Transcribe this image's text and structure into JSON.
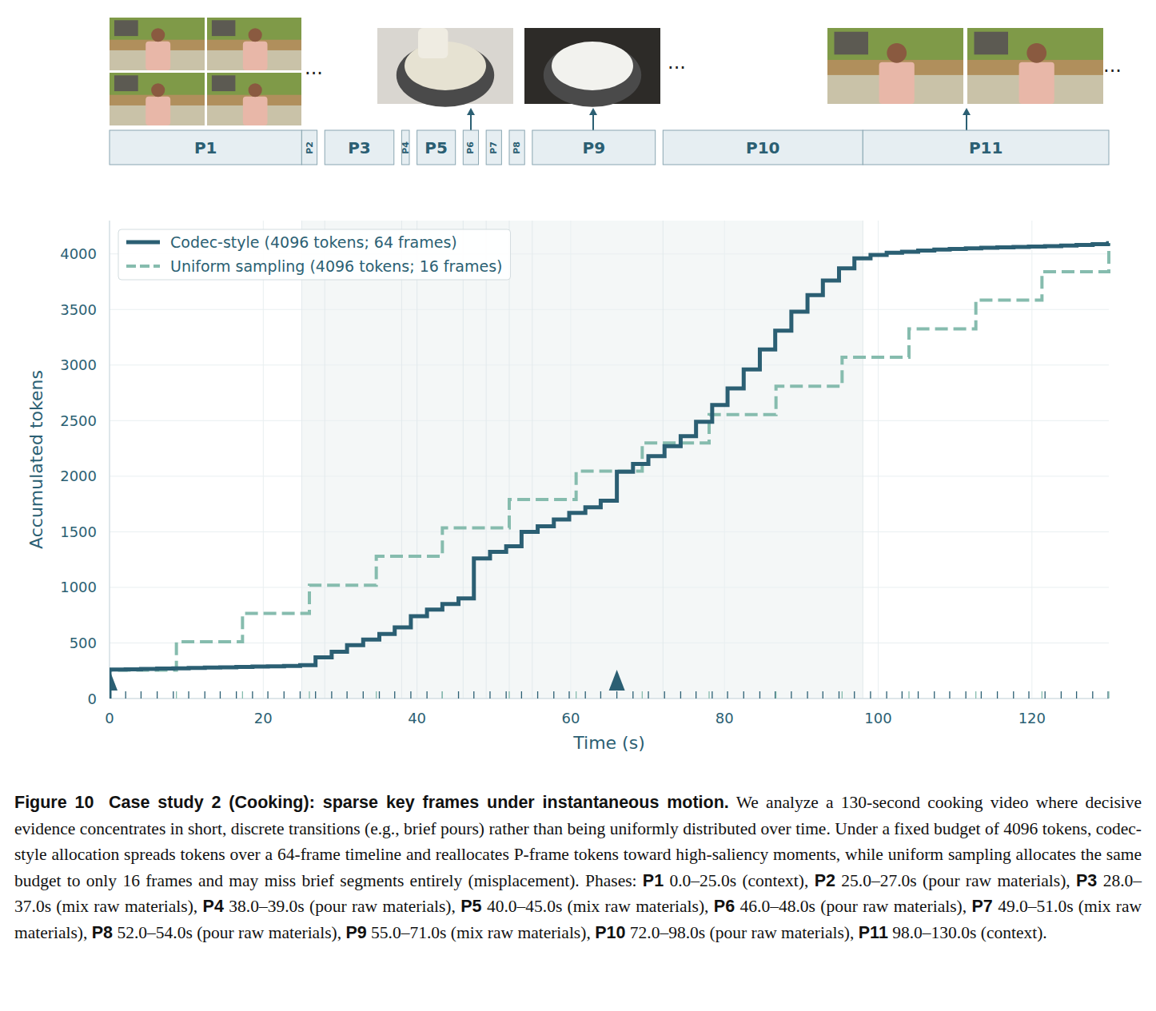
{
  "chart_data": {
    "type": "step",
    "x_label": "Time (s)",
    "y_label": "Accumulated tokens",
    "xlim": [
      0,
      130
    ],
    "ylim": [
      0,
      4300
    ],
    "xticks": [
      0,
      20,
      40,
      60,
      80,
      100,
      120
    ],
    "yticks": [
      0,
      500,
      1000,
      1500,
      2000,
      2500,
      3000,
      3500,
      4000
    ],
    "grid": true,
    "legend": "upper left",
    "series": [
      {
        "name": "Codec-style (4096 tokens; 64 frames)",
        "color": "#2b5f73",
        "line_style": "solid",
        "x": [
          0.0,
          2.1,
          4.1,
          6.2,
          8.3,
          10.3,
          12.4,
          14.4,
          16.5,
          18.6,
          20.6,
          22.7,
          24.8,
          26.8,
          28.9,
          30.9,
          33.0,
          35.1,
          37.1,
          39.2,
          41.3,
          43.3,
          45.4,
          47.4,
          49.5,
          51.6,
          53.6,
          55.7,
          57.8,
          59.8,
          61.9,
          63.9,
          66.0,
          68.1,
          70.1,
          72.2,
          74.3,
          76.3,
          78.4,
          80.4,
          82.5,
          84.6,
          86.6,
          88.7,
          90.8,
          92.8,
          94.9,
          96.9,
          99.0,
          101.1,
          103.1,
          105.2,
          107.3,
          109.3,
          111.4,
          113.4,
          115.5,
          117.6,
          119.6,
          121.7,
          123.8,
          125.8,
          127.9,
          129.9
        ],
        "values": [
          260,
          263,
          266,
          269,
          272,
          275,
          278,
          281,
          284,
          287,
          290,
          293,
          300,
          370,
          420,
          480,
          530,
          580,
          640,
          740,
          800,
          850,
          900,
          1260,
          1320,
          1370,
          1500,
          1550,
          1610,
          1670,
          1720,
          1780,
          2040,
          2110,
          2180,
          2270,
          2360,
          2490,
          2640,
          2790,
          2960,
          3140,
          3310,
          3480,
          3630,
          3760,
          3870,
          3960,
          3990,
          4010,
          4020,
          4030,
          4040,
          4045,
          4050,
          4055,
          4060,
          4063,
          4066,
          4070,
          4075,
          4080,
          4088,
          4096
        ]
      },
      {
        "name": "Uniform sampling (4096 tokens; 16 frames)",
        "color": "#86bcae",
        "line_style": "dashed",
        "x": [
          0.0,
          8.7,
          17.3,
          26.0,
          34.7,
          43.3,
          52.0,
          60.7,
          69.3,
          78.0,
          86.7,
          95.3,
          104.0,
          112.7,
          121.3,
          130.0
        ],
        "values": [
          255,
          510,
          765,
          1020,
          1280,
          1535,
          1790,
          2045,
          2300,
          2555,
          2810,
          3070,
          3325,
          3585,
          3840,
          4096
        ]
      }
    ],
    "phases": [
      {
        "name": "P1",
        "start": 0.0,
        "end": 25.0
      },
      {
        "name": "P2",
        "start": 25.0,
        "end": 27.0
      },
      {
        "name": "P3",
        "start": 28.0,
        "end": 37.0
      },
      {
        "name": "P4",
        "start": 38.0,
        "end": 39.0
      },
      {
        "name": "P5",
        "start": 40.0,
        "end": 45.0
      },
      {
        "name": "P6",
        "start": 46.0,
        "end": 48.0
      },
      {
        "name": "P7",
        "start": 49.0,
        "end": 51.0
      },
      {
        "name": "P8",
        "start": 52.0,
        "end": 54.0
      },
      {
        "name": "P9",
        "start": 55.0,
        "end": 71.0
      },
      {
        "name": "P10",
        "start": 72.0,
        "end": 98.0
      },
      {
        "name": "P11",
        "start": 98.0,
        "end": 130.0
      }
    ],
    "shaded_range": [
      25.0,
      98.0
    ],
    "i_frames": [
      0.0,
      66.0
    ]
  },
  "strip": {
    "ellipsis": "..."
  },
  "caption": {
    "label": "Figure 10",
    "title": "Case study 2 (Cooking): sparse key frames under instantaneous motion.",
    "text": "We analyze a 130-second cooking video where decisive evidence concentrates in short, discrete transitions (e.g., brief pours) rather than being uniformly distributed over time. Under a fixed budget of 4096 tokens, codec-style allocation spreads tokens over a 64-frame timeline and reallocates P-frame tokens toward high-saliency moments, while uniform sampling allocates the same budget to only 16 frames and may miss brief segments entirely (misplacement).",
    "phases_lead": "Phases:",
    "items": [
      {
        "name": "P1",
        "text": "0.0–25.0s (context),"
      },
      {
        "name": "P2",
        "text": "25.0–27.0s (pour raw materials),"
      },
      {
        "name": "P3",
        "text": "28.0–37.0s (mix raw materials),"
      },
      {
        "name": "P4",
        "text": "38.0–39.0s (pour raw materials),"
      },
      {
        "name": "P5",
        "text": "40.0–45.0s (mix raw materials),"
      },
      {
        "name": "P6",
        "text": "46.0–48.0s (pour raw materials),"
      },
      {
        "name": "P7",
        "text": "49.0–51.0s (mix raw materials),"
      },
      {
        "name": "P8",
        "text": "52.0–54.0s (pour raw materials),"
      },
      {
        "name": "P9",
        "text": "55.0–71.0s (mix raw materials),"
      },
      {
        "name": "P10",
        "text": "72.0–98.0s (pour raw materials),"
      },
      {
        "name": "P11",
        "text": "98.0–130.0s (context)."
      }
    ]
  }
}
